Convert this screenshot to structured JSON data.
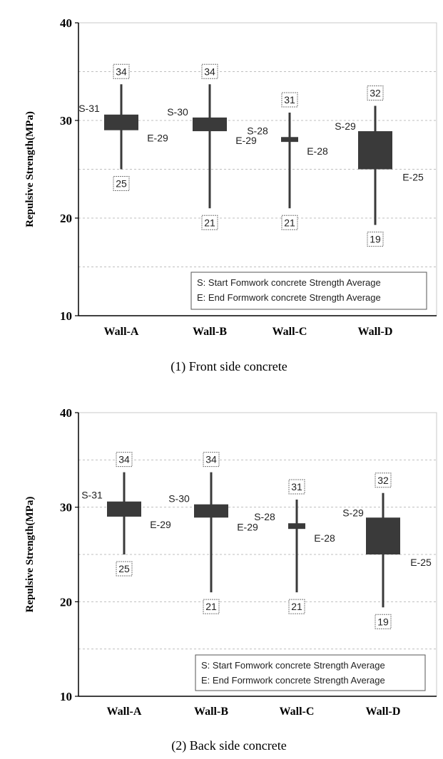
{
  "chart_data": [
    {
      "type": "candlestick",
      "caption": "(1) Front side concrete",
      "ylabel": "Repulsive Strength(MPa)",
      "ylim": [
        10,
        40
      ],
      "yticks": [
        "10",
        "20",
        "30",
        "40"
      ],
      "grid": "horizontal dashed",
      "categories": [
        "Wall-A",
        "Wall-B",
        "Wall-C",
        "Wall-D"
      ],
      "series": [
        {
          "name": "S",
          "values": [
            31,
            30,
            28,
            29
          ]
        },
        {
          "name": "E",
          "values": [
            29,
            29,
            28,
            25
          ]
        },
        {
          "name": "max",
          "values": [
            34,
            34,
            31,
            32
          ]
        },
        {
          "name": "min",
          "values": [
            25,
            21,
            21,
            19
          ]
        }
      ],
      "box_values": {
        "top": [
          30.6,
          30.3,
          28.3,
          28.9
        ],
        "bottom": [
          29.0,
          28.9,
          27.8,
          25.0
        ],
        "whisker_high": [
          33.7,
          33.7,
          30.8,
          31.5
        ],
        "whisker_low": [
          25.0,
          21.0,
          21.0,
          19.3
        ]
      },
      "labels": {
        "s": [
          "S-31",
          "S-30",
          "S-28",
          "S-29"
        ],
        "e": [
          "E-29",
          "E-29",
          "E-28",
          "E-25"
        ],
        "max": [
          "34",
          "34",
          "31",
          "32"
        ],
        "min": [
          "25",
          "21",
          "21",
          "19"
        ]
      },
      "legend": [
        "S: Start Fomwork concrete Strength Average",
        "E: End Formwork concrete Strength Average"
      ],
      "legend_position": "bottom-right",
      "colors": {
        "box": "#3a3a3a",
        "grid": "#bfbfbf",
        "axis": "#000000",
        "label_box": "#777777"
      }
    },
    {
      "type": "candlestick",
      "caption": "(2) Back side concrete",
      "ylabel": "Repulsive Strength(MPa)",
      "ylim": [
        10,
        40
      ],
      "yticks": [
        "10",
        "20",
        "30",
        "40"
      ],
      "grid": "horizontal dashed",
      "categories": [
        "Wall-A",
        "Wall-B",
        "Wall-C",
        "Wall-D"
      ],
      "series": [
        {
          "name": "S",
          "values": [
            31,
            30,
            28,
            29
          ]
        },
        {
          "name": "E",
          "values": [
            29,
            29,
            28,
            25
          ]
        },
        {
          "name": "max",
          "values": [
            34,
            34,
            31,
            32
          ]
        },
        {
          "name": "min",
          "values": [
            25,
            21,
            21,
            19
          ]
        }
      ],
      "box_values": {
        "top": [
          30.6,
          30.3,
          28.3,
          28.9
        ],
        "bottom": [
          29.0,
          28.9,
          27.7,
          25.0
        ],
        "whisker_high": [
          33.7,
          33.7,
          30.8,
          31.5
        ],
        "whisker_low": [
          25.0,
          21.0,
          21.0,
          19.4
        ]
      },
      "labels": {
        "s": [
          "S-31",
          "S-30",
          "S-28",
          "S-29"
        ],
        "e": [
          "E-29",
          "E-29",
          "E-28",
          "E-25"
        ],
        "max": [
          "34",
          "34",
          "31",
          "32"
        ],
        "min": [
          "25",
          "21",
          "21",
          "19"
        ]
      },
      "legend": [
        "S: Start Fomwork concrete Strength Average",
        "E: End Formwork concrete Strength Average"
      ],
      "legend_position": "bottom-right",
      "colors": {
        "box": "#3a3a3a",
        "grid": "#bfbfbf",
        "axis": "#000000",
        "label_box": "#777777"
      }
    }
  ]
}
